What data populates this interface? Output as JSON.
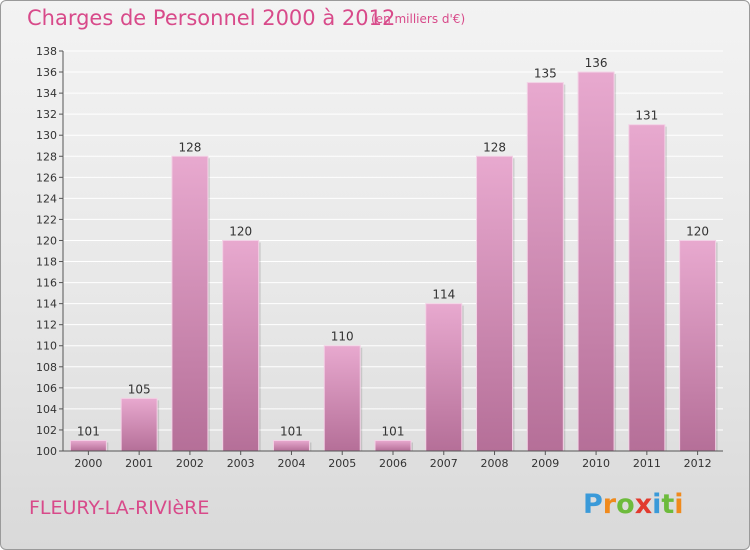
{
  "title": "Charges de Personnel 2000 à 2012",
  "subtitle": "(en milliers d'€)",
  "commune": "FLEURY-LA-RIVIèRE",
  "logo": {
    "text": "Proxiti",
    "letters": [
      "P",
      "r",
      "o",
      "x",
      "i",
      "t",
      "i"
    ],
    "colors": [
      "#3a9ad9",
      "#f08a1c",
      "#6dbb3c",
      "#e23a2e",
      "#3a9ad9",
      "#6dbb3c",
      "#f08a1c"
    ]
  },
  "colors": {
    "bar_light": "#e8a9cf",
    "bar_dark": "#b56f98",
    "text_accent": "#d84a8a"
  },
  "chart_data": {
    "type": "bar",
    "title": "Charges de Personnel 2000 à 2012",
    "subtitle": "(en milliers d'€)",
    "categories": [
      "2000",
      "2001",
      "2002",
      "2003",
      "2004",
      "2005",
      "2006",
      "2007",
      "2008",
      "2009",
      "2010",
      "2011",
      "2012"
    ],
    "values": [
      101,
      105,
      128,
      120,
      101,
      110,
      101,
      114,
      128,
      135,
      136,
      131,
      120
    ],
    "ylim": [
      100,
      138
    ],
    "yticks": [
      100,
      102,
      104,
      106,
      108,
      110,
      112,
      114,
      116,
      118,
      120,
      122,
      124,
      126,
      128,
      130,
      132,
      134,
      136,
      138
    ],
    "grid": true,
    "data_labels": true
  }
}
